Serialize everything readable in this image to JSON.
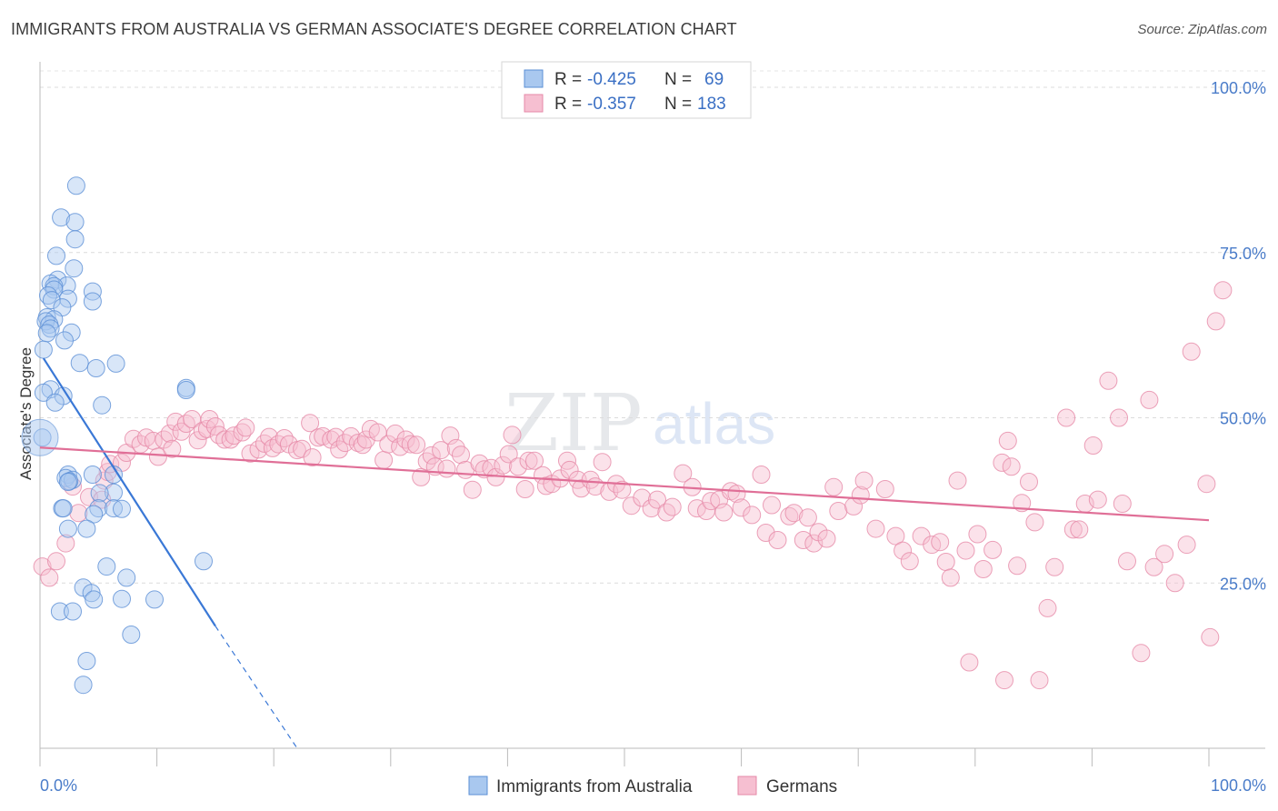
{
  "header": {
    "title": "IMMIGRANTS FROM AUSTRALIA VS GERMAN ASSOCIATE'S DEGREE CORRELATION CHART",
    "source": "Source: ZipAtlas.com"
  },
  "watermark": {
    "zip": "ZIP",
    "atlas": "atlas"
  },
  "chart_data": {
    "type": "scatter",
    "title": "IMMIGRANTS FROM AUSTRALIA VS GERMAN ASSOCIATE'S DEGREE CORRELATION CHART",
    "xlabel": "",
    "ylabel": "Associate's Degree",
    "xlim": [
      0,
      100
    ],
    "ylim": [
      0,
      100
    ],
    "x_tick_labels": {
      "left": "0.0%",
      "right": "100.0%"
    },
    "y_ticks": [
      25,
      50,
      75,
      100
    ],
    "y_tick_labels": [
      "25.0%",
      "50.0%",
      "75.0%",
      "100.0%"
    ],
    "grid": true,
    "legend": {
      "position": "top-center",
      "entries": [
        {
          "r_label": "R =",
          "r_value": "-0.425",
          "n_label": "N =",
          "n_value": "69"
        },
        {
          "r_label": "R =",
          "r_value": "-0.357",
          "n_label": "N =",
          "n_value": "183"
        }
      ]
    },
    "series": [
      {
        "name": "Immigrants from Australia",
        "color": "#5b8fd6",
        "fill": "#a9c8ef",
        "trend": {
          "x0": 0.3,
          "y0": 59,
          "x1": 15,
          "y1": 18.5,
          "dash_to_x": 22,
          "dash_to_y": 0
        },
        "points": [
          [
            3.1,
            85.1
          ],
          [
            1.8,
            80.3
          ],
          [
            3.0,
            79.6
          ],
          [
            3.0,
            77.0
          ],
          [
            1.4,
            74.5
          ],
          [
            2.9,
            72.6
          ],
          [
            1.5,
            70.9
          ],
          [
            0.9,
            70.3
          ],
          [
            2.3,
            70.0
          ],
          [
            1.2,
            69.9
          ],
          [
            1.2,
            69.4
          ],
          [
            4.5,
            69.1
          ],
          [
            0.7,
            68.5
          ],
          [
            2.4,
            68.0
          ],
          [
            1.0,
            67.8
          ],
          [
            4.5,
            67.6
          ],
          [
            1.9,
            66.7
          ],
          [
            0.6,
            65.2
          ],
          [
            1.2,
            64.9
          ],
          [
            0.5,
            64.6
          ],
          [
            0.8,
            64.1
          ],
          [
            0.9,
            63.5
          ],
          [
            2.7,
            62.9
          ],
          [
            0.6,
            62.8
          ],
          [
            2.1,
            61.7
          ],
          [
            0.3,
            60.3
          ],
          [
            3.4,
            58.3
          ],
          [
            6.5,
            58.2
          ],
          [
            4.8,
            57.5
          ],
          [
            12.5,
            54.5
          ],
          [
            0.9,
            54.3
          ],
          [
            12.5,
            54.2
          ],
          [
            2.0,
            53.3
          ],
          [
            0.3,
            53.8
          ],
          [
            1.3,
            52.3
          ],
          [
            5.3,
            51.9
          ],
          [
            0.2,
            47.0
          ],
          [
            6.3,
            41.4
          ],
          [
            2.4,
            41.4
          ],
          [
            4.5,
            41.4
          ],
          [
            2.2,
            40.9
          ],
          [
            2.8,
            40.6
          ],
          [
            2.5,
            40.4
          ],
          [
            2.4,
            40.3
          ],
          [
            6.3,
            38.7
          ],
          [
            5.1,
            38.6
          ],
          [
            1.9,
            36.3
          ],
          [
            2.0,
            36.3
          ],
          [
            5.0,
            36.3
          ],
          [
            6.3,
            36.3
          ],
          [
            7.0,
            36.2
          ],
          [
            4.6,
            35.4
          ],
          [
            2.4,
            33.2
          ],
          [
            4.0,
            33.2
          ],
          [
            14.0,
            28.3
          ],
          [
            5.7,
            27.5
          ],
          [
            7.4,
            25.8
          ],
          [
            3.7,
            24.3
          ],
          [
            4.4,
            23.5
          ],
          [
            4.6,
            22.5
          ],
          [
            9.8,
            22.5
          ],
          [
            7.0,
            22.6
          ],
          [
            1.7,
            20.7
          ],
          [
            2.8,
            20.7
          ],
          [
            7.8,
            17.2
          ],
          [
            4.0,
            13.2
          ],
          [
            3.7,
            9.6
          ]
        ]
      },
      {
        "name": "Germans",
        "color": "#e68aa8",
        "fill": "#f6bfd1",
        "trend": {
          "x0": 0,
          "y0": 45.5,
          "x1": 100,
          "y1": 34.5
        },
        "points": [
          [
            0.2,
            27.5
          ],
          [
            0.8,
            25.8
          ],
          [
            1.4,
            28.3
          ],
          [
            2.2,
            31.0
          ],
          [
            3.3,
            35.6
          ],
          [
            2.8,
            39.6
          ],
          [
            4.2,
            38.0
          ],
          [
            5.3,
            37.6
          ],
          [
            5.5,
            40.5
          ],
          [
            5.8,
            41.8
          ],
          [
            6.0,
            43.0
          ],
          [
            7.0,
            43.2
          ],
          [
            7.4,
            44.7
          ],
          [
            8.0,
            46.8
          ],
          [
            8.6,
            46.0
          ],
          [
            9.1,
            47.0
          ],
          [
            9.7,
            46.5
          ],
          [
            10.1,
            44.1
          ],
          [
            10.6,
            46.7
          ],
          [
            11.1,
            47.6
          ],
          [
            11.3,
            45.3
          ],
          [
            11.6,
            49.4
          ],
          [
            12.1,
            47.9
          ],
          [
            12.5,
            49.1
          ],
          [
            13.0,
            49.8
          ],
          [
            13.5,
            46.6
          ],
          [
            13.9,
            48.0
          ],
          [
            14.3,
            48.3
          ],
          [
            14.5,
            49.8
          ],
          [
            15.0,
            48.7
          ],
          [
            15.3,
            47.4
          ],
          [
            15.8,
            46.7
          ],
          [
            16.3,
            46.7
          ],
          [
            16.6,
            47.3
          ],
          [
            17.3,
            47.8
          ],
          [
            17.6,
            48.5
          ],
          [
            18.0,
            44.6
          ],
          [
            18.7,
            45.2
          ],
          [
            19.2,
            46.1
          ],
          [
            19.6,
            47.1
          ],
          [
            19.9,
            45.4
          ],
          [
            20.4,
            46.0
          ],
          [
            20.9,
            46.9
          ],
          [
            21.3,
            46.0
          ],
          [
            22.0,
            45.1
          ],
          [
            22.4,
            45.3
          ],
          [
            23.1,
            49.2
          ],
          [
            23.3,
            44.0
          ],
          [
            23.8,
            47.0
          ],
          [
            24.2,
            47.2
          ],
          [
            24.9,
            46.7
          ],
          [
            25.3,
            47.1
          ],
          [
            25.6,
            45.2
          ],
          [
            26.1,
            46.2
          ],
          [
            26.6,
            47.2
          ],
          [
            27.2,
            46.2
          ],
          [
            27.6,
            45.9
          ],
          [
            27.9,
            46.7
          ],
          [
            28.3,
            48.3
          ],
          [
            28.9,
            47.8
          ],
          [
            29.4,
            43.6
          ],
          [
            29.8,
            46.0
          ],
          [
            30.4,
            47.6
          ],
          [
            30.8,
            45.6
          ],
          [
            31.3,
            46.7
          ],
          [
            31.7,
            46.0
          ],
          [
            32.2,
            45.9
          ],
          [
            32.6,
            41.0
          ],
          [
            33.1,
            43.4
          ],
          [
            33.5,
            44.3
          ],
          [
            33.8,
            42.6
          ],
          [
            34.3,
            45.1
          ],
          [
            34.8,
            42.3
          ],
          [
            35.1,
            47.3
          ],
          [
            35.6,
            45.4
          ],
          [
            36.0,
            44.4
          ],
          [
            36.4,
            42.1
          ],
          [
            37.0,
            39.1
          ],
          [
            37.6,
            43.1
          ],
          [
            38.0,
            42.2
          ],
          [
            38.6,
            42.4
          ],
          [
            39.0,
            41.0
          ],
          [
            39.6,
            42.8
          ],
          [
            40.1,
            44.5
          ],
          [
            40.4,
            47.4
          ],
          [
            40.9,
            42.6
          ],
          [
            41.5,
            39.2
          ],
          [
            41.8,
            43.5
          ],
          [
            42.3,
            43.5
          ],
          [
            43.0,
            41.3
          ],
          [
            43.3,
            39.7
          ],
          [
            43.8,
            40.0
          ],
          [
            44.5,
            40.8
          ],
          [
            45.1,
            43.5
          ],
          [
            45.3,
            42.1
          ],
          [
            46.0,
            40.6
          ],
          [
            46.3,
            39.3
          ],
          [
            47.1,
            40.6
          ],
          [
            47.5,
            39.6
          ],
          [
            48.1,
            43.3
          ],
          [
            48.7,
            38.8
          ],
          [
            49.3,
            40.0
          ],
          [
            49.8,
            39.1
          ],
          [
            50.6,
            36.7
          ],
          [
            51.5,
            37.9
          ],
          [
            52.3,
            36.3
          ],
          [
            52.8,
            37.6
          ],
          [
            53.6,
            35.7
          ],
          [
            54.1,
            36.5
          ],
          [
            55.0,
            41.6
          ],
          [
            55.8,
            39.5
          ],
          [
            56.2,
            36.3
          ],
          [
            57.0,
            35.9
          ],
          [
            57.4,
            37.4
          ],
          [
            58.1,
            37.6
          ],
          [
            58.5,
            35.7
          ],
          [
            59.1,
            38.9
          ],
          [
            59.6,
            38.5
          ],
          [
            60.0,
            36.4
          ],
          [
            60.9,
            35.3
          ],
          [
            61.7,
            41.4
          ],
          [
            62.1,
            32.6
          ],
          [
            62.6,
            36.8
          ],
          [
            63.1,
            31.5
          ],
          [
            64.1,
            35.1
          ],
          [
            64.5,
            35.6
          ],
          [
            65.3,
            31.5
          ],
          [
            65.7,
            34.9
          ],
          [
            66.2,
            31.0
          ],
          [
            66.6,
            32.7
          ],
          [
            67.3,
            31.7
          ],
          [
            67.9,
            39.5
          ],
          [
            68.3,
            35.9
          ],
          [
            69.6,
            36.6
          ],
          [
            70.2,
            38.3
          ],
          [
            70.5,
            40.5
          ],
          [
            71.5,
            33.2
          ],
          [
            72.3,
            39.2
          ],
          [
            73.2,
            32.1
          ],
          [
            73.8,
            29.9
          ],
          [
            74.4,
            28.3
          ],
          [
            75.4,
            32.1
          ],
          [
            76.3,
            30.8
          ],
          [
            77.0,
            31.2
          ],
          [
            77.5,
            28.2
          ],
          [
            77.9,
            25.8
          ],
          [
            78.5,
            40.5
          ],
          [
            79.2,
            29.9
          ],
          [
            80.2,
            32.4
          ],
          [
            80.7,
            27.1
          ],
          [
            81.5,
            30.0
          ],
          [
            82.3,
            43.2
          ],
          [
            82.8,
            46.5
          ],
          [
            83.1,
            42.6
          ],
          [
            83.6,
            27.6
          ],
          [
            84.0,
            37.1
          ],
          [
            84.6,
            40.3
          ],
          [
            85.1,
            34.2
          ],
          [
            86.2,
            21.2
          ],
          [
            86.8,
            27.4
          ],
          [
            87.8,
            50.0
          ],
          [
            88.4,
            33.1
          ],
          [
            88.9,
            33.1
          ],
          [
            89.4,
            37.0
          ],
          [
            90.1,
            45.8
          ],
          [
            90.5,
            37.6
          ],
          [
            91.4,
            55.6
          ],
          [
            92.3,
            50.0
          ],
          [
            92.6,
            37.0
          ],
          [
            93.0,
            28.3
          ],
          [
            94.2,
            14.4
          ],
          [
            94.9,
            52.7
          ],
          [
            95.3,
            27.4
          ],
          [
            96.2,
            29.4
          ],
          [
            97.1,
            25.0
          ],
          [
            98.1,
            30.8
          ],
          [
            98.5,
            60.0
          ],
          [
            99.8,
            40.0
          ],
          [
            100.1,
            16.8
          ],
          [
            100.6,
            64.6
          ],
          [
            101.2,
            69.3
          ],
          [
            79.5,
            13.0
          ],
          [
            82.5,
            10.3
          ],
          [
            85.5,
            10.3
          ]
        ]
      }
    ]
  },
  "bottom_legend": {
    "items": [
      {
        "label": "Immigrants from Australia"
      },
      {
        "label": "Germans"
      }
    ]
  }
}
